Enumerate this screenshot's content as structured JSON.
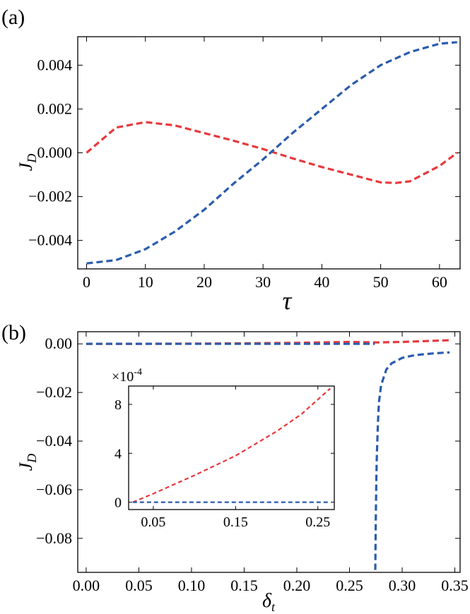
{
  "colors": {
    "red": "#e8393c",
    "blue": "#2a5cad"
  },
  "chart_data": [
    {
      "type": "line",
      "panel_label": "(a)",
      "xlabel": "τ",
      "ylabel": "J",
      "ylabel_sub": "D",
      "xlim": [
        -1.5,
        63.5
      ],
      "ylim": [
        -0.0053,
        0.0053
      ],
      "xticks": [
        0,
        10,
        20,
        30,
        40,
        50,
        60
      ],
      "xtick_labels": [
        "0",
        "10",
        "20",
        "30",
        "40",
        "50",
        "60"
      ],
      "yticks": [
        0.004,
        0.002,
        0.0,
        -0.002,
        -0.004
      ],
      "ytick_labels": [
        "0.004",
        "0.002",
        "0.000",
        "−0.002",
        "−0.004"
      ],
      "grid": false,
      "series": [
        {
          "color": "red",
          "x": [
            0,
            5,
            10,
            15,
            20,
            25,
            30,
            35,
            40,
            45,
            50,
            52.5,
            55,
            60,
            63
          ],
          "y": [
            0.0,
            0.00115,
            0.0014,
            0.00125,
            0.0009,
            0.00055,
            0.00017,
            -0.00025,
            -0.00065,
            -0.001,
            -0.00135,
            -0.00138,
            -0.0013,
            -0.0006,
            0.0
          ]
        },
        {
          "color": "blue",
          "x": [
            0,
            5,
            10,
            15,
            20,
            25,
            30,
            35,
            40,
            45,
            50,
            55,
            60,
            63
          ],
          "y": [
            -0.00505,
            -0.0049,
            -0.0044,
            -0.0036,
            -0.0026,
            -0.0014,
            -0.0003,
            0.0009,
            0.002,
            0.0031,
            0.004,
            0.0046,
            0.00498,
            0.00505
          ]
        }
      ]
    },
    {
      "type": "line",
      "panel_label": "(b)",
      "xlabel": "δ",
      "xlabel_sub": "t",
      "ylabel": "J",
      "ylabel_sub": "D",
      "xlim": [
        -0.008,
        0.355
      ],
      "ylim": [
        -0.094,
        0.005
      ],
      "xticks": [
        0.0,
        0.05,
        0.1,
        0.15,
        0.2,
        0.25,
        0.3,
        0.35
      ],
      "xtick_labels": [
        "0.00",
        "0.05",
        "0.10",
        "0.15",
        "0.20",
        "0.25",
        "0.30",
        "0.35"
      ],
      "yticks": [
        0.0,
        -0.02,
        -0.04,
        -0.06,
        -0.08
      ],
      "ytick_labels": [
        "0.00",
        "−0.02",
        "−0.04",
        "−0.06",
        "−0.08"
      ],
      "grid": false,
      "series": [
        {
          "color": "red",
          "x": [
            0.0,
            0.05,
            0.1,
            0.15,
            0.2,
            0.25,
            0.275,
            0.3,
            0.325,
            0.345
          ],
          "y": [
            0.0,
            5e-05,
            0.0001,
            0.0002,
            0.0004,
            0.0008,
            0.0006,
            0.0008,
            0.0012,
            0.0015
          ]
        },
        {
          "color": "blue",
          "x": [
            0.0,
            0.05,
            0.1,
            0.15,
            0.2,
            0.25,
            0.274
          ],
          "y": [
            0.0,
            0.0,
            0.0,
            0.0,
            0.0,
            0.0,
            0.0
          ]
        },
        {
          "color": "blue",
          "x": [
            0.2745,
            0.275,
            0.2755,
            0.276,
            0.277,
            0.278,
            0.28,
            0.285,
            0.29,
            0.3,
            0.31,
            0.32,
            0.33,
            0.345
          ],
          "y": [
            -0.093,
            -0.07,
            -0.055,
            -0.045,
            -0.032,
            -0.024,
            -0.017,
            -0.0105,
            -0.008,
            -0.0058,
            -0.0048,
            -0.0043,
            -0.0039,
            -0.0035
          ]
        }
      ],
      "inset": {
        "xlim": [
          0.02,
          0.27
        ],
        "ylim": [
          -0.6,
          9.5
        ],
        "xticks": [
          0.05,
          0.15,
          0.25
        ],
        "xtick_labels": [
          "0.05",
          "0.15",
          "0.25"
        ],
        "yticks": [
          0,
          4,
          8
        ],
        "ytick_labels": [
          "0",
          "4",
          "8"
        ],
        "scale_label": "×10",
        "scale_exp": "-4",
        "series": [
          {
            "color": "red",
            "x": [
              0.025,
              0.05,
              0.1,
              0.15,
              0.2,
              0.23,
              0.265
            ],
            "y": [
              0.0,
              0.7,
              2.2,
              3.8,
              5.8,
              7.2,
              9.3
            ]
          },
          {
            "color": "blue",
            "x": [
              0.025,
              0.265
            ],
            "y": [
              0.0,
              0.0
            ]
          }
        ]
      }
    }
  ]
}
